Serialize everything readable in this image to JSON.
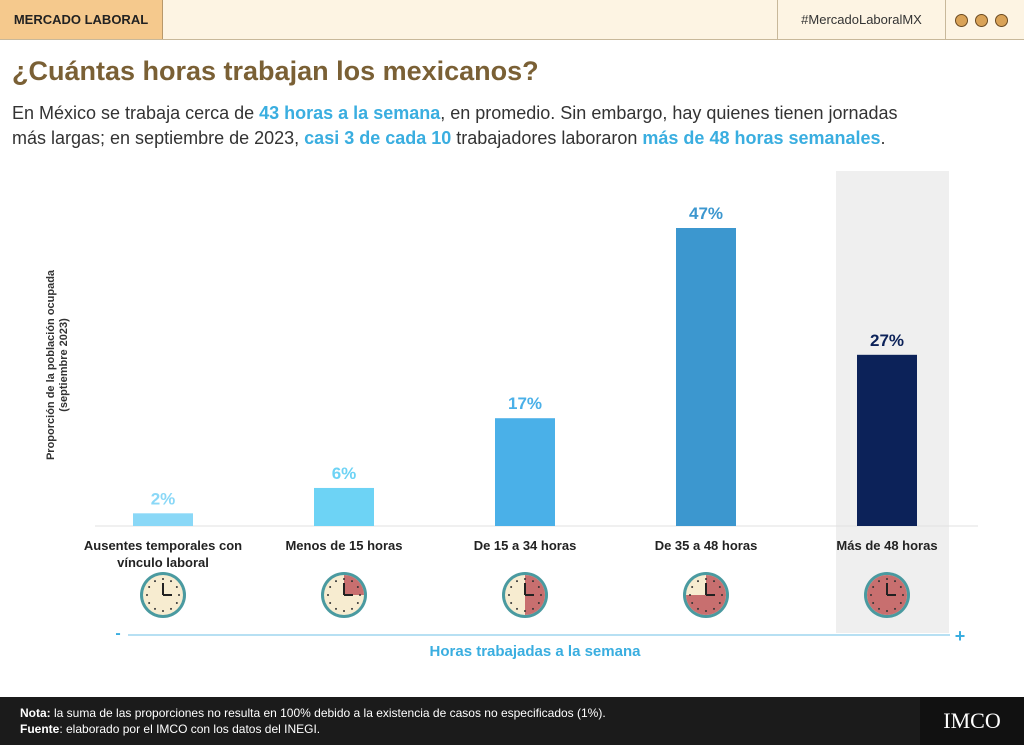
{
  "header": {
    "section": "MERCADO LABORAL",
    "hashtag": "#MercadoLaboralMX"
  },
  "chart_data": {
    "type": "bar",
    "title": "¿Cuántas horas trabajan los mexicanos?",
    "subtitle": [
      [
        {
          "text": "En México se trabaja cerca de ",
          "highlight": false
        },
        {
          "text": "43 horas a la semana",
          "highlight": true
        },
        {
          "text": ", en promedio. Sin embargo, hay quienes tienen jornadas",
          "highlight": false
        }
      ],
      [
        {
          "text": "más largas; en septiembre de 2023, ",
          "highlight": false
        },
        {
          "text": "casi 3 de cada 10",
          "highlight": true
        },
        {
          "text": " trabajadores laboraron ",
          "highlight": false
        },
        {
          "text": "más de 48 horas semanales",
          "highlight": true
        },
        {
          "text": ".",
          "highlight": false
        }
      ]
    ],
    "y_label": [
      "Proporción de la población ocupada",
      "(septiembre 2023)"
    ],
    "x_label": "Horas trabajadas a la semana",
    "x_axis_ends": [
      "-",
      "+"
    ],
    "categories": [
      "Ausentes temporales con vínculo laboral",
      "Menos de 15 horas",
      "De 15 a 34 horas",
      "De 35 a 48 horas",
      "Más de 48 horas"
    ],
    "values": [
      2,
      6,
      17,
      47,
      27
    ],
    "value_labels": [
      "2%",
      "6%",
      "17%",
      "47%",
      "27%"
    ],
    "colors": [
      "#8ad8f7",
      "#6dd3f5",
      "#4ab0e8",
      "#3c97cf",
      "#0c2259"
    ]
  },
  "footer": {
    "notes": [
      {
        "label": "Nota:",
        "text": " la suma de las proporciones no resulta en 100% debido a la existencia de casos no especificados (1%)."
      },
      {
        "label": "Fuente",
        "text": ": elaborado por el IMCO con los datos del INEGI."
      }
    ],
    "logo": "IMCO"
  }
}
